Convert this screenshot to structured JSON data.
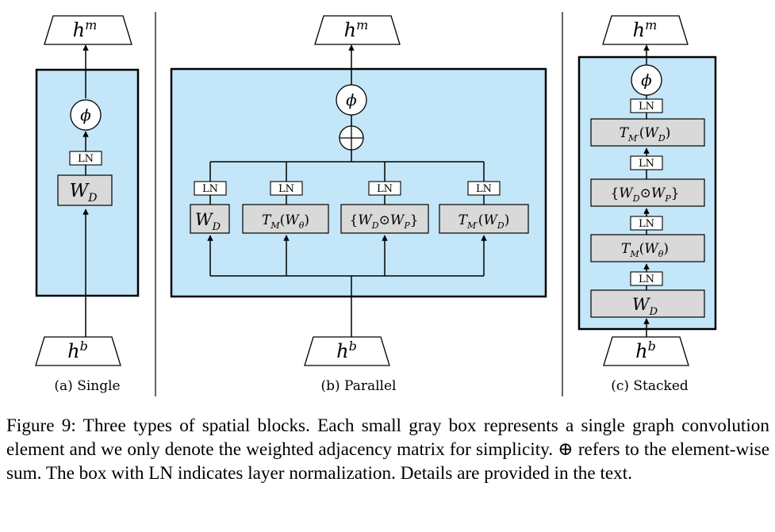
{
  "panels": {
    "single": {
      "label": "(a) Single",
      "output": "h",
      "output_sup": "m",
      "input": "h",
      "input_sup": "b",
      "activation": "ϕ",
      "norm": "LN",
      "op": {
        "main": "W",
        "sub": "D"
      }
    },
    "parallel": {
      "label": "(b) Parallel",
      "output": "h",
      "output_sup": "m",
      "input": "h",
      "input_sup": "b",
      "activation": "ϕ",
      "sum": "⊕",
      "branches": [
        {
          "norm": "LN",
          "op": "W_D"
        },
        {
          "norm": "LN",
          "op": "T_M(W_θ)"
        },
        {
          "norm": "LN",
          "op": "{W_D⊙W_P}"
        },
        {
          "norm": "LN",
          "op": "T_M′(W_D)"
        }
      ]
    },
    "stacked": {
      "label": "(c) Stacked",
      "output": "h",
      "output_sup": "m",
      "input": "h",
      "input_sup": "b",
      "activation": "ϕ",
      "layers": [
        {
          "op": "T_M′(W_D)",
          "norm": "LN"
        },
        {
          "op": "{W_D⊙W_P}",
          "norm": "LN"
        },
        {
          "op": "T_M(W_θ)",
          "norm": "LN"
        },
        {
          "op": "W_D",
          "norm": "LN"
        }
      ]
    }
  },
  "caption": {
    "part1": "Figure 9: Three types of spatial blocks. Each small gray box represents a single graph convolution element and we only denote the weighted adjacency matrix for simplicity.",
    "symbol": "⊕",
    "part2": "refers to the element-wise sum. The box with LN indicates layer normalization. Details are provided in the text."
  },
  "colors": {
    "block_fill": "#c3e6f8",
    "op_fill": "#d9d9d9",
    "stroke": "#000000",
    "background": "#ffffff"
  }
}
